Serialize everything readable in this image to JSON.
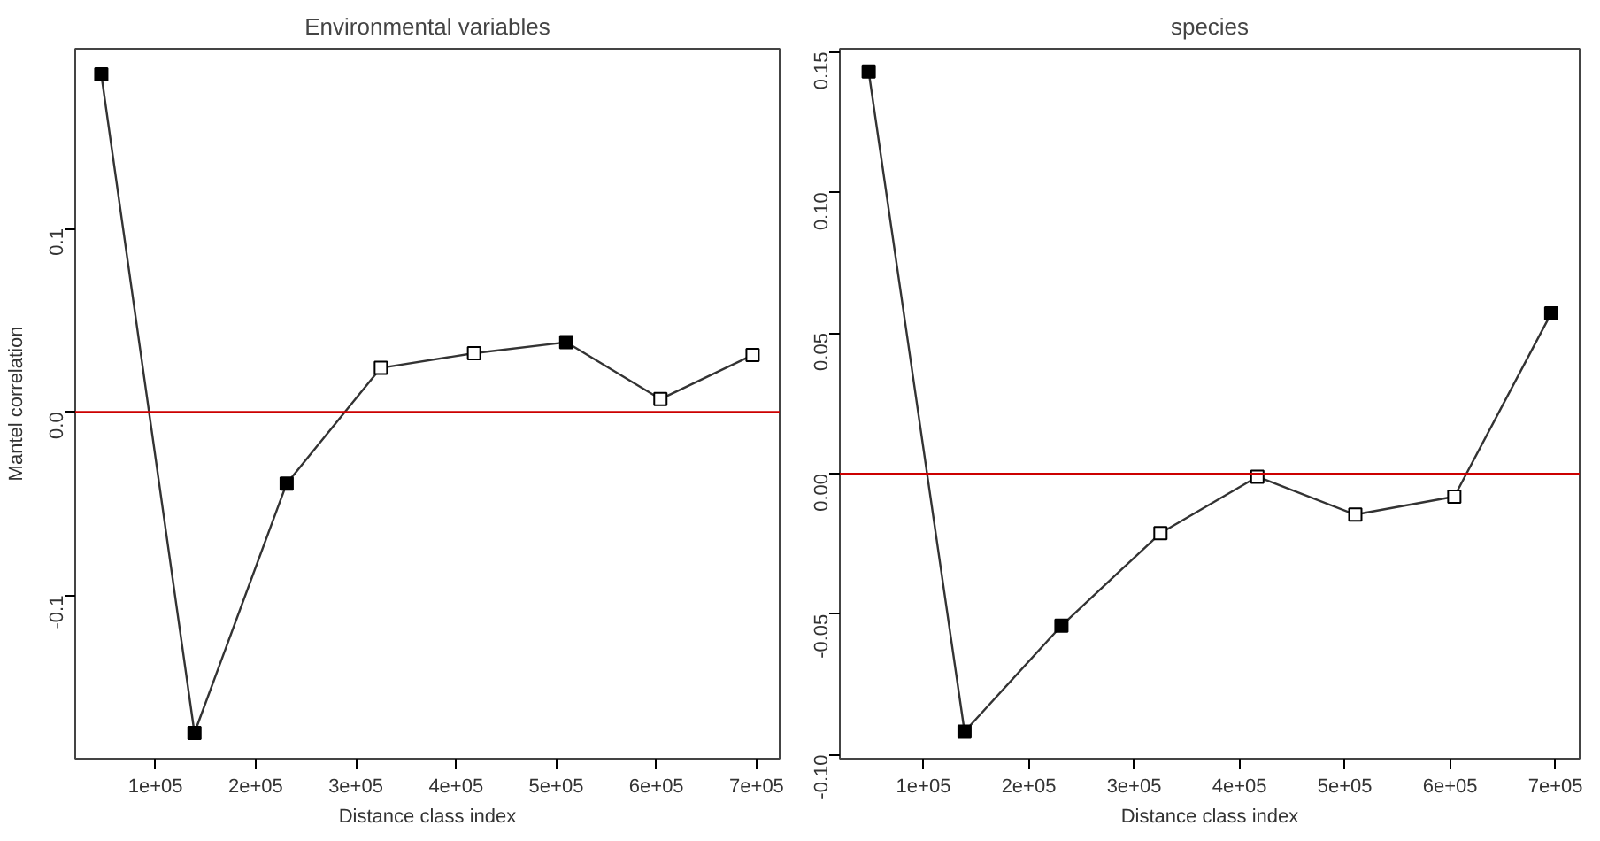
{
  "chart_data": [
    {
      "type": "line",
      "title": "Environmental variables",
      "xlabel": "Distance class index",
      "ylabel": "Mantel correlation",
      "x": [
        46000,
        139000,
        231000,
        325000,
        418000,
        510000,
        604000,
        696000
      ],
      "series": [
        {
          "color": "#333333",
          "values": [
            0.184,
            -0.175,
            -0.039,
            0.024,
            0.032,
            0.038,
            0.007,
            0.031
          ],
          "colors": [
            "#000000",
            "#000000",
            "#000000",
            "#ffffff",
            "#ffffff",
            "#000000",
            "#ffffff",
            "#ffffff"
          ]
        }
      ],
      "marker": "square",
      "line_style": "solid",
      "xlim": [
        20000,
        723000
      ],
      "ylim": [
        -0.189,
        0.198
      ],
      "xticks": [
        {
          "value": 100000,
          "label": "1e+05"
        },
        {
          "value": 200000,
          "label": "2e+05"
        },
        {
          "value": 300000,
          "label": "3e+05"
        },
        {
          "value": 400000,
          "label": "4e+05"
        },
        {
          "value": 500000,
          "label": "5e+05"
        },
        {
          "value": 600000,
          "label": "6e+05"
        },
        {
          "value": 700000,
          "label": "7e+05"
        }
      ],
      "yticks": [
        {
          "value": -0.1,
          "label": "-0.1"
        },
        {
          "value": 0,
          "label": "0.0"
        },
        {
          "value": 0.1,
          "label": "0.1"
        }
      ],
      "ref_lines": [
        {
          "axis": "y",
          "value": 0,
          "color": "#cc0000"
        }
      ]
    },
    {
      "type": "line",
      "title": "species",
      "xlabel": "Distance class index",
      "x": [
        48000,
        139000,
        231000,
        325000,
        417000,
        510000,
        604000,
        696000
      ],
      "series": [
        {
          "color": "#333333",
          "values": [
            0.143,
            -0.0918,
            -0.0541,
            -0.0212,
            -0.0011,
            -0.0146,
            -0.0082,
            0.057
          ],
          "colors": [
            "#000000",
            "#000000",
            "#000000",
            "#ffffff",
            "#ffffff",
            "#ffffff",
            "#ffffff",
            "#000000"
          ]
        }
      ],
      "marker": "square",
      "line_style": "solid",
      "xlim": [
        20600,
        723000
      ],
      "ylim": [
        -0.1014,
        0.1511
      ],
      "xticks": [
        {
          "value": 100000,
          "label": "1e+05"
        },
        {
          "value": 200000,
          "label": "2e+05"
        },
        {
          "value": 300000,
          "label": "3e+05"
        },
        {
          "value": 400000,
          "label": "4e+05"
        },
        {
          "value": 500000,
          "label": "5e+05"
        },
        {
          "value": 600000,
          "label": "6e+05"
        },
        {
          "value": 700000,
          "label": "7e+05"
        }
      ],
      "yticks": [
        {
          "value": -0.1,
          "label": "-0.10"
        },
        {
          "value": -0.05,
          "label": "-0.05"
        },
        {
          "value": 0,
          "label": "0.00"
        },
        {
          "value": 0.05,
          "label": "0.05"
        },
        {
          "value": 0.1,
          "label": "0.10"
        },
        {
          "value": 0.15,
          "label": "0.15"
        }
      ],
      "ref_lines": [
        {
          "axis": "y",
          "value": 0,
          "color": "#cc0000"
        }
      ]
    }
  ]
}
